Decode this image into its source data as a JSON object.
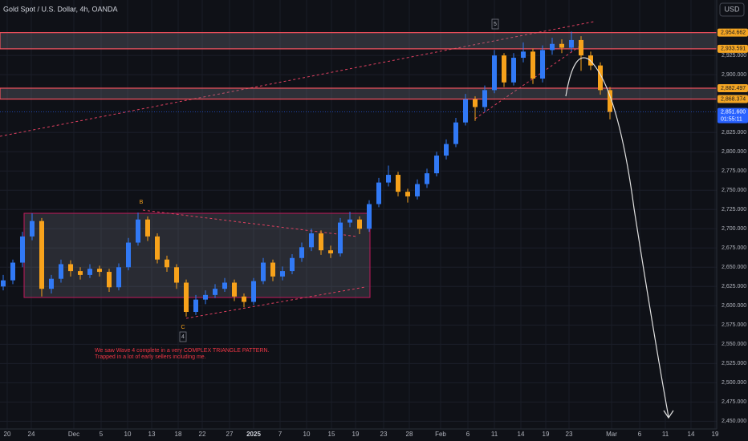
{
  "chart_data": {
    "type": "candlestick",
    "title": "Gold Spot / U.S. Dollar, 4h, OANDA",
    "currency": "USD",
    "open": [
      2625,
      2633,
      2656,
      2690,
      2710,
      2622,
      2635,
      2654,
      2645,
      2640,
      2648,
      2644,
      2624,
      2650,
      2682,
      2712,
      2690,
      2660,
      2650,
      2630,
      2592,
      2608,
      2614,
      2622,
      2630,
      2612,
      2605,
      2632,
      2656,
      2638,
      2645,
      2662,
      2676,
      2694,
      2672,
      2668,
      2708,
      2712,
      2700,
      2732,
      2760,
      2770,
      2748,
      2742,
      2758,
      2772,
      2795,
      2810,
      2838,
      2868,
      2858,
      2880,
      2925,
      2890,
      2922,
      2930,
      2895,
      2932,
      2940,
      2935,
      2945,
      2925,
      2912,
      2880
    ],
    "high": [
      2640,
      2660,
      2696,
      2720,
      2714,
      2640,
      2660,
      2659,
      2650,
      2654,
      2652,
      2648,
      2655,
      2688,
      2721,
      2716,
      2694,
      2665,
      2654,
      2634,
      2614,
      2620,
      2628,
      2636,
      2634,
      2616,
      2636,
      2662,
      2660,
      2651,
      2667,
      2682,
      2700,
      2698,
      2678,
      2714,
      2722,
      2716,
      2737,
      2766,
      2782,
      2774,
      2752,
      2764,
      2778,
      2800,
      2816,
      2844,
      2875,
      2872,
      2886,
      2932,
      2928,
      2928,
      2942,
      2934,
      2938,
      2948,
      2946,
      2956,
      2950,
      2930,
      2916,
      2884
    ],
    "low": [
      2620,
      2628,
      2650,
      2685,
      2612,
      2616,
      2630,
      2638,
      2634,
      2636,
      2638,
      2618,
      2620,
      2646,
      2678,
      2684,
      2655,
      2644,
      2622,
      2586,
      2588,
      2602,
      2610,
      2618,
      2606,
      2598,
      2601,
      2628,
      2632,
      2633,
      2641,
      2657,
      2671,
      2666,
      2662,
      2664,
      2702,
      2693,
      2696,
      2728,
      2755,
      2742,
      2734,
      2738,
      2753,
      2768,
      2790,
      2806,
      2834,
      2840,
      2852,
      2876,
      2884,
      2886,
      2916,
      2888,
      2890,
      2926,
      2928,
      2930,
      2905,
      2906,
      2874,
      2842
    ],
    "close": [
      2633,
      2656,
      2690,
      2710,
      2622,
      2635,
      2654,
      2645,
      2640,
      2648,
      2644,
      2624,
      2650,
      2682,
      2712,
      2690,
      2660,
      2650,
      2630,
      2592,
      2608,
      2614,
      2622,
      2630,
      2612,
      2605,
      2632,
      2656,
      2638,
      2645,
      2662,
      2676,
      2694,
      2672,
      2668,
      2708,
      2712,
      2700,
      2732,
      2760,
      2770,
      2748,
      2742,
      2758,
      2772,
      2795,
      2810,
      2838,
      2868,
      2858,
      2880,
      2925,
      2890,
      2922,
      2930,
      2895,
      2932,
      2940,
      2935,
      2945,
      2925,
      2912,
      2880,
      2851.6
    ],
    "up_color": "#3179f5",
    "down_color": "#f7a21b",
    "ylim": [
      2440,
      2997
    ],
    "yticks": [
      {
        "value": 2450,
        "label": "2,450.000"
      },
      {
        "value": 2475,
        "label": "2,475.000"
      },
      {
        "value": 2500,
        "label": "2,500.000"
      },
      {
        "value": 2525,
        "label": "2,525.000"
      },
      {
        "value": 2550,
        "label": "2,550.000"
      },
      {
        "value": 2575,
        "label": "2,575.000"
      },
      {
        "value": 2600,
        "label": "2,600.000"
      },
      {
        "value": 2625,
        "label": "2,625.000"
      },
      {
        "value": 2650,
        "label": "2,650.000"
      },
      {
        "value": 2675,
        "label": "2,675.000"
      },
      {
        "value": 2700,
        "label": "2,700.000"
      },
      {
        "value": 2725,
        "label": "2,725.000"
      },
      {
        "value": 2750,
        "label": "2,750.000"
      },
      {
        "value": 2775,
        "label": "2,775.000"
      },
      {
        "value": 2800,
        "label": "2,800.000"
      },
      {
        "value": 2825,
        "label": "2,825.000"
      },
      {
        "value": 2900,
        "label": "2,900.000"
      },
      {
        "value": 2925,
        "label": "2,925.000"
      }
    ],
    "xlabels": [
      "20",
      "24",
      "Dec",
      "5",
      "10",
      "13",
      "18",
      "22",
      "27",
      "2025",
      "7",
      "10",
      "15",
      "19",
      "23",
      "28",
      "Feb",
      "6",
      "11",
      "14",
      "19",
      "23",
      "Mar",
      "6",
      "11",
      "14",
      "19"
    ],
    "zones": [
      {
        "low": 2933.591,
        "high": 2954.662
      },
      {
        "low": 2868.374,
        "high": 2882.497
      }
    ],
    "price_labels": [
      {
        "value": 2954.662,
        "label": "2,954.662"
      },
      {
        "value": 2933.591,
        "label": "2,933.591"
      },
      {
        "value": 2882.497,
        "label": "2,882.497"
      },
      {
        "value": 2868.374,
        "label": "2,868.374"
      }
    ],
    "last_price": {
      "value": 2851.6,
      "label": "2,851.600",
      "countdown": "01:55:11"
    },
    "wave_labels": [
      "B",
      "C",
      "4",
      "5"
    ],
    "annotation": [
      "We saw Wave 4 complete in a very COMPLEX TRIANGLE PATTERN.",
      "Trapped in a lot of early sellers including me."
    ],
    "grid": true
  }
}
